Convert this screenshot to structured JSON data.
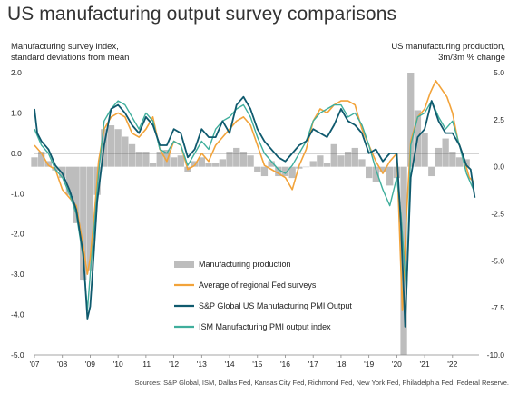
{
  "title": "US manufacturing output survey comparisons",
  "left_axis_label": [
    "Manufacturing survey index,",
    "standard deviations from mean"
  ],
  "right_axis_label": [
    "US manufacturing production,",
    "3m/3m % change"
  ],
  "source": "Sources: S&P Global, ISM, Dallas Fed, Kansas City Fed, Richmond Fed, New York Fed, Philadelphia Fed, Federal Reserve.",
  "colors": {
    "production": "#bdbdbd",
    "fed": "#f2a33a",
    "spg": "#0f5a6e",
    "ism": "#3fae9c",
    "zero_line": "#555555"
  },
  "chart_data": {
    "type": "line",
    "ylim_left": [
      -5.0,
      2.0
    ],
    "ylim_right": [
      -10.0,
      5.0
    ],
    "xlim": [
      2007.0,
      2022.95
    ],
    "left_ticks": [
      "2.0",
      "1.0",
      "0.0",
      "-1.0",
      "-2.0",
      "-3.0",
      "-4.0",
      "-5.0"
    ],
    "left_tick_values": [
      2,
      1,
      0,
      -1,
      -2,
      -3,
      -4,
      -5
    ],
    "right_ticks": [
      "5.0",
      "2.5",
      "0.0",
      "-2.5",
      "-5.0",
      "-7.5",
      "-10.0"
    ],
    "right_tick_values": [
      5,
      2.5,
      0,
      -2.5,
      -5,
      -7.5,
      -10
    ],
    "x_ticks": [
      "'07",
      "'08",
      "'09",
      "'10",
      "'11",
      "'12",
      "'13",
      "'14",
      "'15",
      "'16",
      "'17",
      "'18",
      "'19",
      "'20",
      "'21",
      "'22"
    ],
    "x_tick_values": [
      2007,
      2008,
      2009,
      2010,
      2011,
      2012,
      2013,
      2014,
      2015,
      2016,
      2017,
      2018,
      2019,
      2020,
      2021,
      2022
    ],
    "grid": false,
    "legend_position": "center",
    "series": [
      {
        "name": "Manufacturing production",
        "type": "bar",
        "axis": "right",
        "x": [
          2007.0,
          2007.25,
          2007.5,
          2007.75,
          2008.0,
          2008.25,
          2008.5,
          2008.75,
          2009.0,
          2009.25,
          2009.5,
          2009.75,
          2010.0,
          2010.25,
          2010.5,
          2010.75,
          2011.0,
          2011.25,
          2011.5,
          2011.75,
          2012.0,
          2012.25,
          2012.5,
          2012.75,
          2013.0,
          2013.25,
          2013.5,
          2013.75,
          2014.0,
          2014.25,
          2014.5,
          2014.75,
          2015.0,
          2015.25,
          2015.5,
          2015.75,
          2016.0,
          2016.25,
          2016.5,
          2016.75,
          2017.0,
          2017.25,
          2017.5,
          2017.75,
          2018.0,
          2018.25,
          2018.5,
          2018.75,
          2019.0,
          2019.25,
          2019.5,
          2019.75,
          2020.0,
          2020.25,
          2020.5,
          2020.75,
          2021.0,
          2021.25,
          2021.5,
          2021.75,
          2022.0,
          2022.25,
          2022.5
        ],
        "values": [
          0.5,
          0.8,
          0.3,
          -0.2,
          -0.6,
          -1.5,
          -3.0,
          -6.0,
          -5.5,
          -1.5,
          2.0,
          2.2,
          2.0,
          1.6,
          1.2,
          0.8,
          0.8,
          0.2,
          0.8,
          0.9,
          0.5,
          0.6,
          -0.3,
          0.3,
          0.5,
          0.2,
          0.2,
          0.4,
          0.8,
          1.0,
          0.8,
          0.6,
          -0.3,
          -0.5,
          0.3,
          -0.5,
          -0.5,
          -0.6,
          -0.1,
          0.0,
          0.3,
          0.6,
          0.2,
          1.2,
          0.6,
          0.8,
          1.0,
          0.4,
          -0.6,
          -0.8,
          -0.3,
          -1.0,
          -0.6,
          -10.0,
          5.0,
          3.0,
          1.8,
          -0.5,
          1.0,
          1.5,
          0.8,
          0.5,
          0.4
        ]
      },
      {
        "name": "Average of regional Fed surveys",
        "type": "line",
        "axis": "left",
        "x": [
          2007.0,
          2007.25,
          2007.5,
          2007.75,
          2008.0,
          2008.25,
          2008.5,
          2008.75,
          2008.9,
          2009.0,
          2009.15,
          2009.3,
          2009.5,
          2009.75,
          2010.0,
          2010.25,
          2010.5,
          2010.75,
          2011.0,
          2011.25,
          2011.5,
          2011.75,
          2012.0,
          2012.25,
          2012.5,
          2012.75,
          2013.0,
          2013.25,
          2013.5,
          2013.75,
          2014.0,
          2014.25,
          2014.5,
          2014.75,
          2015.0,
          2015.25,
          2015.5,
          2015.75,
          2016.0,
          2016.25,
          2016.5,
          2016.75,
          2017.0,
          2017.25,
          2017.5,
          2017.75,
          2018.0,
          2018.25,
          2018.5,
          2018.75,
          2019.0,
          2019.25,
          2019.5,
          2019.75,
          2020.0,
          2020.2,
          2020.35,
          2020.5,
          2020.75,
          2021.0,
          2021.2,
          2021.4,
          2021.6,
          2021.8,
          2022.0,
          2022.2,
          2022.4,
          2022.6,
          2022.75
        ],
        "values": [
          0.2,
          0.0,
          -0.3,
          -0.4,
          -0.9,
          -1.1,
          -1.3,
          -2.3,
          -3.0,
          -2.6,
          -1.5,
          -0.2,
          0.6,
          0.9,
          1.0,
          0.9,
          0.5,
          0.4,
          0.6,
          0.9,
          0.1,
          -0.2,
          0.3,
          0.2,
          -0.4,
          -0.3,
          0.0,
          -0.2,
          0.2,
          0.4,
          0.6,
          0.8,
          0.9,
          0.7,
          0.2,
          -0.3,
          -0.4,
          -0.5,
          -0.6,
          -0.9,
          -0.3,
          0.1,
          0.8,
          1.1,
          1.0,
          1.2,
          1.3,
          1.3,
          1.2,
          0.6,
          0.2,
          -0.2,
          -0.5,
          -0.2,
          0.0,
          -3.9,
          -1.5,
          0.3,
          0.9,
          1.1,
          1.5,
          1.8,
          1.6,
          1.4,
          1.0,
          0.3,
          -0.1,
          -0.6,
          -0.7
        ]
      },
      {
        "name": "S&P Global US Manufacturing PMI Output",
        "type": "line",
        "axis": "left",
        "x": [
          2007.0,
          2007.1,
          2007.25,
          2007.5,
          2007.75,
          2008.0,
          2008.25,
          2008.5,
          2008.75,
          2008.9,
          2009.0,
          2009.1,
          2009.25,
          2009.5,
          2009.75,
          2010.0,
          2010.25,
          2010.5,
          2010.75,
          2011.0,
          2011.25,
          2011.5,
          2011.75,
          2012.0,
          2012.25,
          2012.5,
          2012.75,
          2013.0,
          2013.25,
          2013.5,
          2013.75,
          2014.0,
          2014.25,
          2014.5,
          2014.75,
          2015.0,
          2015.25,
          2015.5,
          2015.75,
          2016.0,
          2016.25,
          2016.5,
          2016.75,
          2017.0,
          2017.25,
          2017.5,
          2017.75,
          2018.0,
          2018.25,
          2018.5,
          2018.75,
          2019.0,
          2019.25,
          2019.5,
          2019.75,
          2020.0,
          2020.15,
          2020.3,
          2020.5,
          2020.75,
          2021.0,
          2021.25,
          2021.5,
          2021.75,
          2022.0,
          2022.25,
          2022.5,
          2022.65,
          2022.8
        ],
        "values": [
          1.1,
          0.5,
          0.3,
          0.1,
          -0.3,
          -0.5,
          -0.9,
          -1.4,
          -2.5,
          -4.1,
          -3.8,
          -2.8,
          -1.2,
          0.2,
          1.1,
          1.2,
          1.0,
          0.7,
          0.5,
          0.9,
          0.7,
          0.2,
          0.2,
          0.6,
          0.5,
          -0.1,
          0.1,
          0.6,
          0.4,
          0.4,
          0.8,
          0.5,
          1.2,
          1.4,
          1.1,
          0.6,
          0.3,
          0.1,
          -0.1,
          -0.2,
          0.0,
          0.2,
          0.3,
          0.6,
          0.5,
          0.4,
          0.7,
          1.1,
          0.8,
          0.7,
          0.5,
          0.0,
          0.1,
          -0.2,
          0.0,
          0.0,
          -1.8,
          -4.3,
          -0.6,
          0.4,
          0.6,
          1.3,
          0.8,
          0.5,
          0.5,
          0.2,
          -0.3,
          -0.4,
          -1.1
        ]
      },
      {
        "name": "ISM Manufacturing PMI output index",
        "type": "line",
        "axis": "left",
        "x": [
          2007.0,
          2007.25,
          2007.5,
          2007.75,
          2008.0,
          2008.25,
          2008.5,
          2008.75,
          2008.9,
          2009.0,
          2009.15,
          2009.3,
          2009.5,
          2009.75,
          2010.0,
          2010.25,
          2010.5,
          2010.75,
          2011.0,
          2011.25,
          2011.5,
          2011.75,
          2012.0,
          2012.25,
          2012.5,
          2012.75,
          2013.0,
          2013.25,
          2013.5,
          2013.75,
          2014.0,
          2014.25,
          2014.5,
          2014.75,
          2015.0,
          2015.25,
          2015.5,
          2015.75,
          2016.0,
          2016.25,
          2016.5,
          2016.75,
          2017.0,
          2017.25,
          2017.5,
          2017.75,
          2018.0,
          2018.25,
          2018.5,
          2018.75,
          2019.0,
          2019.25,
          2019.5,
          2019.75,
          2020.0,
          2020.15,
          2020.35,
          2020.5,
          2020.75,
          2021.0,
          2021.25,
          2021.5,
          2021.75,
          2022.0,
          2022.25,
          2022.5,
          2022.75
        ],
        "values": [
          0.6,
          0.2,
          0.0,
          -0.4,
          -0.6,
          -1.0,
          -1.5,
          -2.6,
          -3.9,
          -3.0,
          -1.8,
          -0.5,
          0.8,
          1.1,
          1.3,
          1.2,
          0.9,
          0.6,
          1.0,
          0.8,
          0.1,
          0.0,
          0.3,
          0.2,
          -0.3,
          0.0,
          0.3,
          0.1,
          0.6,
          0.8,
          0.9,
          1.1,
          1.2,
          0.9,
          0.4,
          0.0,
          -0.2,
          -0.4,
          -0.5,
          -0.3,
          0.0,
          0.3,
          0.8,
          1.0,
          1.1,
          1.2,
          1.2,
          0.9,
          1.0,
          0.7,
          0.2,
          -0.4,
          -0.9,
          -1.3,
          -0.6,
          -1.5,
          -3.5,
          0.2,
          0.9,
          1.0,
          1.3,
          0.9,
          0.6,
          0.8,
          0.2,
          -0.5,
          -0.9
        ]
      }
    ]
  }
}
